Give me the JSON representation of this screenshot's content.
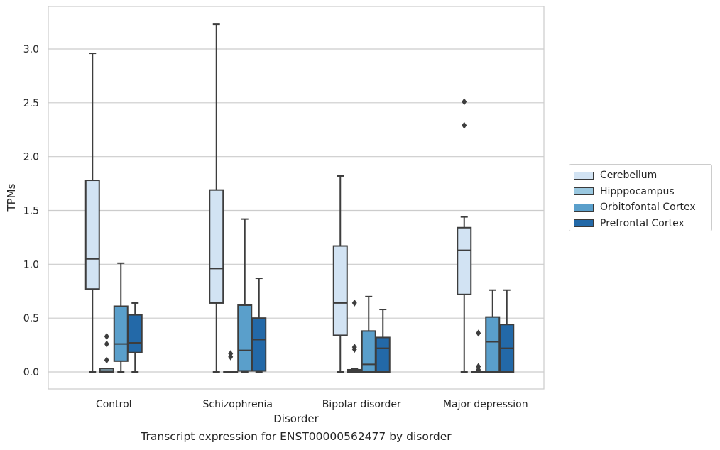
{
  "chart_data": {
    "type": "box",
    "xlabel": "Disorder",
    "ylabel": "TPMs",
    "caption": "Transcript expression for ENST00000562477 by disorder",
    "ylim": [
      -0.16,
      3.4
    ],
    "yticks": [
      "0.0",
      "0.5",
      "1.0",
      "1.5",
      "2.0",
      "2.5",
      "3.0"
    ],
    "categories": [
      "Control",
      "Schizophrenia",
      "Bipolar disorder",
      "Major depression"
    ],
    "legend_position": "right",
    "grid": "horizontal",
    "series": [
      {
        "name": "Cerebellum",
        "color": "#d2e3f3",
        "boxes": [
          {
            "whisker_low": 0.0,
            "q1": 0.77,
            "median": 1.05,
            "q3": 1.78,
            "whisker_high": 2.96,
            "outliers": []
          },
          {
            "whisker_low": 0.0,
            "q1": 0.64,
            "median": 0.96,
            "q3": 1.69,
            "whisker_high": 3.23,
            "outliers": []
          },
          {
            "whisker_low": 0.0,
            "q1": 0.34,
            "median": 0.64,
            "q3": 1.17,
            "whisker_high": 1.82,
            "outliers": []
          },
          {
            "whisker_low": 0.0,
            "q1": 0.72,
            "median": 1.13,
            "q3": 1.34,
            "whisker_high": 1.44,
            "outliers": [
              2.29,
              2.51
            ]
          }
        ]
      },
      {
        "name": "Hipppocampus",
        "color": "#9ac8e0",
        "boxes": [
          {
            "whisker_low": 0.0,
            "q1": 0.0,
            "median": 0.01,
            "q3": 0.03,
            "whisker_high": 0.03,
            "outliers": [
              0.11,
              0.26,
              0.33
            ]
          },
          {
            "whisker_low": 0.0,
            "q1": 0.0,
            "median": 0.0,
            "q3": 0.0,
            "whisker_high": 0.0,
            "outliers": [
              0.14,
              0.17
            ]
          },
          {
            "whisker_low": 0.0,
            "q1": 0.0,
            "median": 0.01,
            "q3": 0.02,
            "whisker_high": 0.03,
            "outliers": [
              0.21,
              0.23,
              0.64
            ]
          },
          {
            "whisker_low": 0.0,
            "q1": 0.0,
            "median": 0.0,
            "q3": 0.0,
            "whisker_high": 0.0,
            "outliers": [
              0.02,
              0.05,
              0.36
            ]
          }
        ]
      },
      {
        "name": "Orbitofontal Cortex",
        "color": "#5a9fcb",
        "boxes": [
          {
            "whisker_low": 0.0,
            "q1": 0.1,
            "median": 0.26,
            "q3": 0.61,
            "whisker_high": 1.01,
            "outliers": []
          },
          {
            "whisker_low": 0.0,
            "q1": 0.01,
            "median": 0.2,
            "q3": 0.62,
            "whisker_high": 1.42,
            "outliers": []
          },
          {
            "whisker_low": 0.0,
            "q1": 0.0,
            "median": 0.07,
            "q3": 0.38,
            "whisker_high": 0.7,
            "outliers": []
          },
          {
            "whisker_low": 0.0,
            "q1": 0.0,
            "median": 0.28,
            "q3": 0.51,
            "whisker_high": 0.76,
            "outliers": []
          }
        ]
      },
      {
        "name": "Prefrontal Cortex",
        "color": "#2369a8",
        "boxes": [
          {
            "whisker_low": 0.0,
            "q1": 0.18,
            "median": 0.27,
            "q3": 0.53,
            "whisker_high": 0.64,
            "outliers": []
          },
          {
            "whisker_low": 0.0,
            "q1": 0.01,
            "median": 0.3,
            "q3": 0.5,
            "whisker_high": 0.87,
            "outliers": []
          },
          {
            "whisker_low": 0.0,
            "q1": 0.0,
            "median": 0.22,
            "q3": 0.32,
            "whisker_high": 0.58,
            "outliers": []
          },
          {
            "whisker_low": 0.0,
            "q1": 0.0,
            "median": 0.22,
            "q3": 0.44,
            "whisker_high": 0.76,
            "outliers": []
          }
        ]
      }
    ]
  }
}
